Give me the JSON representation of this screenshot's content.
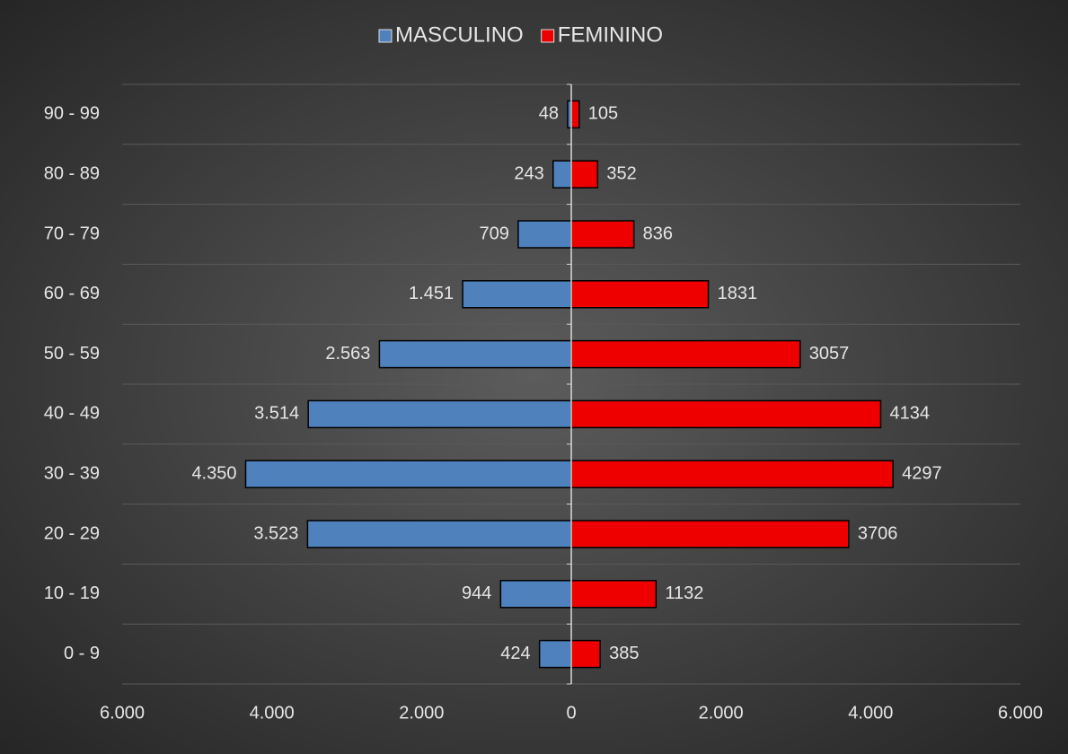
{
  "chart_data": {
    "type": "pyramid",
    "categories": [
      "0 - 9",
      "10 - 19",
      "20 - 29",
      "30 - 39",
      "40 - 49",
      "50 - 59",
      "60 - 69",
      "70 - 79",
      "80 - 89",
      "90 - 99"
    ],
    "series": [
      {
        "name": "MASCULINO",
        "color": "#4f81bd",
        "values": [
          424,
          944,
          3523,
          4350,
          3514,
          2563,
          1451,
          709,
          243,
          48
        ],
        "value_labels": [
          "424",
          "944",
          "3.523",
          "4.350",
          "3.514",
          "2.563",
          "1.451",
          "709",
          "243",
          "48"
        ]
      },
      {
        "name": "FEMININO",
        "color": "#ee0000",
        "values": [
          385,
          1132,
          3706,
          4297,
          4134,
          3057,
          1831,
          836,
          352,
          105
        ]
      }
    ],
    "xlim": [
      -6000,
      6000
    ],
    "xticks": [
      {
        "value": -6000,
        "label": "6.000"
      },
      {
        "value": -4000,
        "label": "4.000"
      },
      {
        "value": -2000,
        "label": "2.000"
      },
      0,
      {
        "value": 2000,
        "label": "2.000"
      },
      {
        "value": 4000,
        "label": "4.000"
      },
      {
        "value": 6000,
        "label": "6.000"
      }
    ],
    "legend": "top"
  }
}
